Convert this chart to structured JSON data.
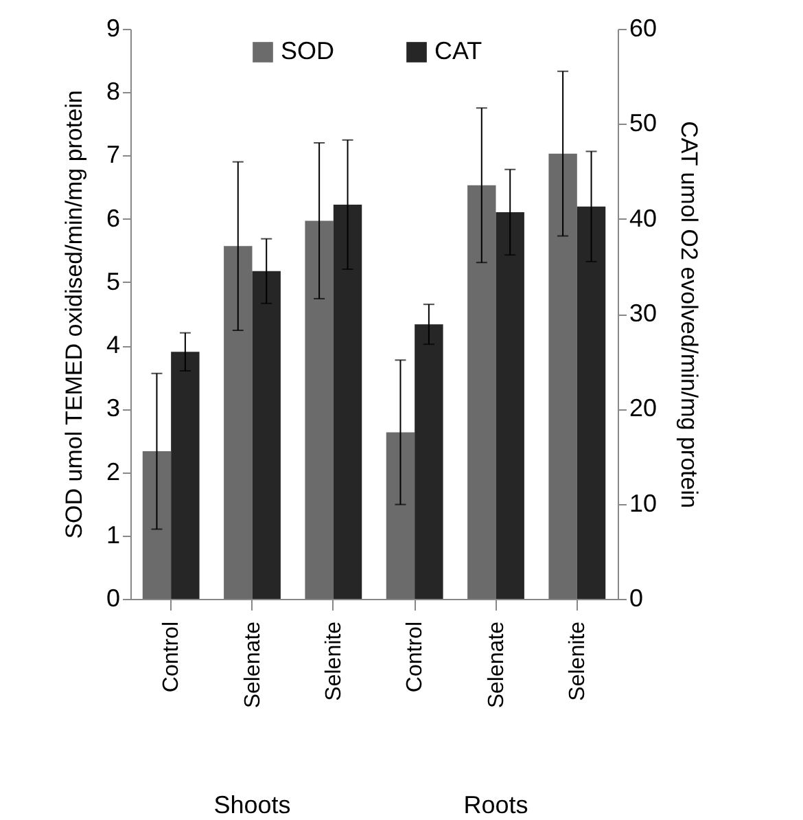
{
  "chart_data": {
    "type": "bar",
    "categories": [
      "Control",
      "Selenate",
      "Selenite",
      "Control",
      "Selenate",
      "Selenite"
    ],
    "annotations": [
      "Shoots",
      "Roots"
    ],
    "ylabel": "SOD umol TEMED oxidised/min/mg protein",
    "y2label": "CAT umol O2 evolved/min/mg protein",
    "series": [
      {
        "name": "SOD",
        "color": "#6b6b6b",
        "values": [
          2.33,
          5.57,
          5.97,
          2.63,
          6.53,
          7.03
        ],
        "errors": [
          1.23,
          1.33,
          1.23,
          1.14,
          1.22,
          1.3
        ]
      },
      {
        "name": "CAT",
        "color": "#262626",
        "axis": "y2",
        "values": [
          26,
          34.5,
          41.5,
          28.9,
          40.7,
          41.3
        ],
        "errors": [
          2,
          3.4,
          6.8,
          2.1,
          4.5,
          5.8
        ]
      }
    ],
    "ylim": [
      0,
      9
    ],
    "yticks": [
      0,
      1,
      2,
      3,
      4,
      5,
      6,
      7,
      8,
      9
    ],
    "y2lim": [
      0,
      60
    ],
    "y2ticks": [
      0,
      10,
      20,
      30,
      40,
      50,
      60
    ],
    "legend": "top",
    "grid": false
  }
}
